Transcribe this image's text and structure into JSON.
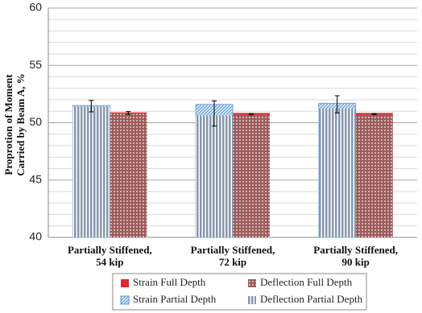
{
  "chart_data": {
    "type": "bar",
    "y_label": "Proprotion of Moment\nCarried by Beam A, %",
    "categories": [
      "Partially Stiffened,\n54 kip",
      "Partially Stiffened,\n72 kip",
      "Partially Stiffened,\n90 kip"
    ],
    "series": [
      {
        "name": "Strain Full Depth",
        "color": "#e3262c",
        "pattern": "solid",
        "slot": 1,
        "values": [
          50.9,
          50.85,
          50.85
        ]
      },
      {
        "name": "Deflection Full Depth",
        "color": "#9b5a5a",
        "pattern": "dots",
        "slot": 1,
        "values": [
          50.8,
          50.7,
          50.7
        ]
      },
      {
        "name": "Strain Partial Depth",
        "color": "#5b9bd5",
        "pattern": "hatch",
        "slot": 0,
        "values": [
          51.5,
          51.6,
          51.7
        ]
      },
      {
        "name": "Deflection Partial Depth",
        "color": "#8696ad",
        "pattern": "stripes",
        "slot": 0,
        "values": [
          51.4,
          50.6,
          51.2
        ]
      }
    ],
    "error_bars": [
      {
        "slot": 0,
        "center": [
          51.45,
          50.8,
          51.6
        ],
        "error": [
          0.5,
          1.1,
          0.75
        ]
      },
      {
        "slot": 1,
        "center": [
          50.85,
          50.75,
          50.75
        ],
        "error": [
          0.12,
          0.06,
          0.04
        ]
      }
    ],
    "ylim": [
      40,
      60
    ],
    "yticks": [
      40,
      45,
      50,
      55,
      60
    ],
    "minor_yticks": [
      41,
      42,
      43,
      44,
      46,
      47,
      48,
      49,
      51,
      52,
      53,
      54,
      56,
      57,
      58,
      59
    ],
    "grid": true,
    "legend": "bottom"
  }
}
